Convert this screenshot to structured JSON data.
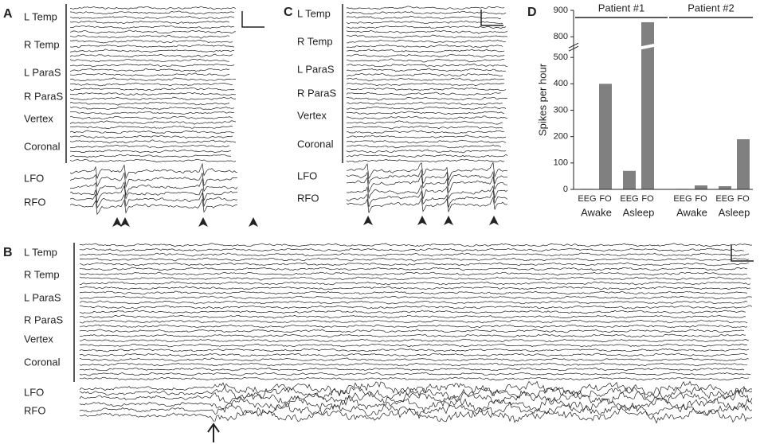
{
  "panels": {
    "a": {
      "label": "A",
      "channels": [
        "L Temp",
        "R Temp",
        "L ParaS",
        "R ParaS",
        "Vertex",
        "Coronal",
        "LFO",
        "RFO"
      ]
    },
    "b": {
      "label": "B",
      "channels": [
        "L Temp",
        "R Temp",
        "L ParaS",
        "R ParaS",
        "Vertex",
        "Coronal",
        "LFO",
        "RFO"
      ]
    },
    "c": {
      "label": "C",
      "channels": [
        "L Temp",
        "R Temp",
        "L ParaS",
        "R ParaS",
        "Vertex",
        "Coronal",
        "LFO",
        "RFO"
      ]
    },
    "d": {
      "label": "D"
    }
  },
  "chart_data": {
    "type": "bar",
    "y_label": "Spikes per hour",
    "categories": [
      "EEG",
      "FO",
      "EEG",
      "FO",
      "EEG",
      "FO",
      "EEG",
      "FO"
    ],
    "values": [
      2,
      400,
      70,
      855,
      2,
      15,
      12,
      190
    ],
    "color": "#808080",
    "conditions": [
      "Awake",
      "Asleep",
      "Awake",
      "Asleep"
    ],
    "patients": [
      "Patient #1",
      "Patient #2"
    ],
    "ylim": [
      0,
      900
    ],
    "yticks": [
      0,
      100,
      200,
      300,
      400,
      500,
      800,
      900
    ]
  }
}
